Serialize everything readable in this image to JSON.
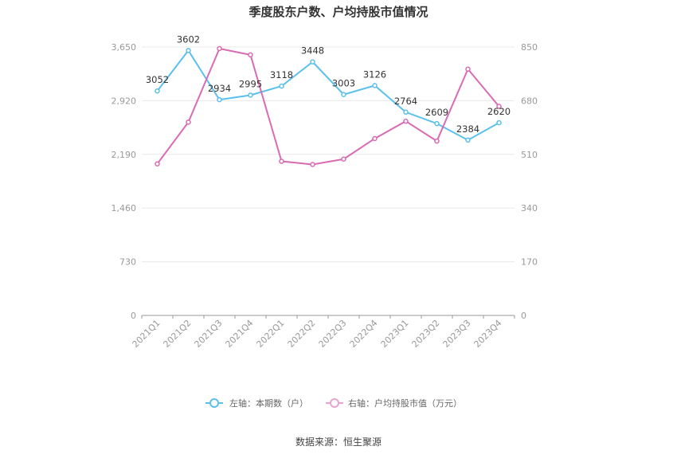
{
  "chart_data": {
    "type": "line",
    "title": "季度股东户数、户均持股市值情况",
    "categories": [
      "2021Q1",
      "2021Q2",
      "2021Q3",
      "2021Q4",
      "2022Q1",
      "2022Q2",
      "2022Q3",
      "2022Q4",
      "2023Q1",
      "2023Q2",
      "2023Q3",
      "2023Q4"
    ],
    "left_axis": {
      "ticks": [
        "0",
        "730",
        "1,460",
        "2,190",
        "2,920",
        "3,650"
      ],
      "ylim": [
        0,
        3650
      ]
    },
    "right_axis": {
      "ticks": [
        "0",
        "170",
        "340",
        "510",
        "680",
        "850"
      ],
      "ylim": [
        0,
        850
      ]
    },
    "series": [
      {
        "name": "左轴：本期数（户）",
        "axis": "left",
        "color": "#5bc0eb",
        "values": [
          3052,
          3602,
          2934,
          2995,
          3118,
          3448,
          3003,
          3126,
          2764,
          2609,
          2384,
          2620
        ],
        "labels": [
          "3052",
          "3602",
          "2934",
          "2995",
          "3118",
          "3448",
          "3003",
          "3126",
          "2764",
          "2609",
          "2384",
          "2620"
        ]
      },
      {
        "name": "右轴：户均持股市值（万元）",
        "axis": "right",
        "color": "#d96bb4",
        "values": [
          480,
          612,
          845,
          825,
          488,
          478,
          495,
          560,
          615,
          552,
          780,
          662
        ]
      }
    ],
    "grid": true,
    "legend_position": "bottom"
  },
  "source": "数据来源：恒生聚源"
}
